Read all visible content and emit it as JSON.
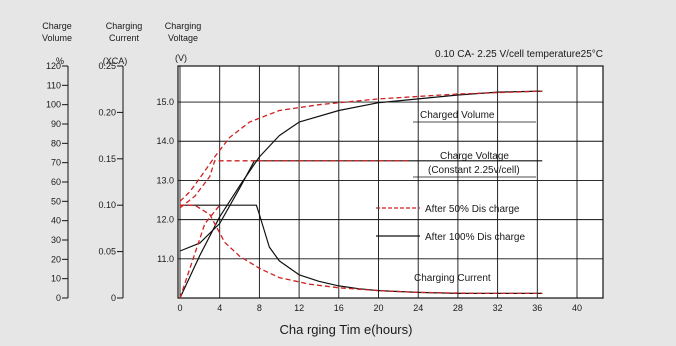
{
  "chart_data": {
    "type": "line",
    "title": "0.10 CA- 2.25 V/cell  temperature25°C",
    "xlabel": "Cha rging Tim e(hours)",
    "xlim": [
      0,
      40
    ],
    "x_ticks": [
      "0",
      "4",
      "8",
      "12",
      "16",
      "20",
      "24",
      "28",
      "32",
      "36",
      "40"
    ],
    "grid": true,
    "background": "#e6e6e6",
    "plot_background": "#ffffff",
    "axes": {
      "volume": {
        "header": [
          "Charge",
          "Volume"
        ],
        "unit": "%",
        "range": [
          0,
          120
        ],
        "ticks": [
          "0",
          "10",
          "20",
          "30",
          "40",
          "50",
          "60",
          "70",
          "80",
          "90",
          "100",
          "110",
          "120"
        ]
      },
      "current": {
        "header": [
          "Charging",
          "Current"
        ],
        "unit": "(XCA)",
        "range": [
          0,
          0.25
        ],
        "ticks": [
          "0",
          "0.05",
          "0.10",
          "0.15",
          "0.20",
          "0.25"
        ]
      },
      "voltage": {
        "header": [
          "Charging",
          "Voltage"
        ],
        "unit": "(V)",
        "range": [
          10.0,
          15.92
        ],
        "ticks": [
          "11.0",
          "12.0",
          "13.0",
          "14.0",
          "15.0"
        ]
      }
    },
    "legend": [
      {
        "label": "After 50% Dis charge",
        "style": "dashed",
        "color": "#cc2222"
      },
      {
        "label": "After 100% Dis charge",
        "style": "solid",
        "color": "#111111"
      }
    ],
    "curve_labels": {
      "charged_volume": "Charged Volume",
      "charge_voltage": "Charge Voltage",
      "charge_voltage_note": "(Constant 2.25v/cell)",
      "charging_current": "Charging Current"
    },
    "series": [
      {
        "name": "Charged Volume (After 100% Discharge)",
        "style": "solid",
        "color": "#111111",
        "axis": "volume",
        "x": [
          0,
          2,
          4,
          6,
          8,
          10,
          12,
          16,
          20,
          24,
          28,
          32,
          36.5
        ],
        "y": [
          0,
          22,
          42,
          58,
          73,
          84,
          91,
          97,
          101,
          103,
          105,
          106.5,
          107
        ]
      },
      {
        "name": "Charge Voltage (After 100% Discharge)",
        "style": "solid",
        "color": "#111111",
        "axis": "voltage",
        "x": [
          0,
          2,
          4,
          6,
          7.5,
          36.5
        ],
        "y": [
          11.2,
          11.4,
          11.9,
          12.8,
          13.5,
          13.5
        ]
      },
      {
        "name": "Charging Current (After 100% Discharge)",
        "style": "solid",
        "color": "#111111",
        "axis": "current",
        "x": [
          0,
          7.7,
          8.0,
          9,
          10,
          12,
          14,
          16,
          18,
          20,
          24,
          28,
          36.5
        ],
        "y": [
          0.1,
          0.1,
          0.09,
          0.055,
          0.04,
          0.025,
          0.018,
          0.013,
          0.01,
          0.008,
          0.006,
          0.005,
          0.005
        ]
      },
      {
        "name": "Charged Volume (After 50% Discharge)",
        "style": "dashed",
        "color": "#cc2222",
        "axis": "volume",
        "x": [
          0,
          1,
          2,
          3.5,
          5,
          7,
          10,
          14,
          20,
          28,
          36.5
        ],
        "y": [
          50,
          55,
          62,
          73,
          83,
          91,
          97,
          100,
          103,
          105.5,
          107
        ]
      },
      {
        "name": "Charge Voltage (After 50% Discharge)",
        "style": "dashed",
        "color": "#cc2222",
        "axis": "voltage",
        "x": [
          0,
          1.5,
          3.0,
          3.5,
          23
        ],
        "y": [
          12.3,
          12.6,
          13.1,
          13.5,
          13.5
        ]
      },
      {
        "name": "Charging Current (After 50% Discharge)",
        "style": "dashed",
        "color": "#cc2222",
        "axis": "current",
        "x": [
          0,
          1.5,
          3.0,
          4.5,
          6,
          8,
          10,
          13,
          16,
          20,
          24,
          30,
          36.5
        ],
        "y": [
          0.1,
          0.1,
          0.09,
          0.06,
          0.045,
          0.032,
          0.022,
          0.015,
          0.011,
          0.008,
          0.006,
          0.005,
          0.005
        ]
      },
      {
        "name": "Charging Current Rise (After 50% Discharge)",
        "style": "dashed",
        "color": "#cc2222",
        "axis": "current",
        "x": [
          0,
          2.5,
          4
        ],
        "y": [
          0,
          0.08,
          0.1
        ]
      }
    ]
  }
}
